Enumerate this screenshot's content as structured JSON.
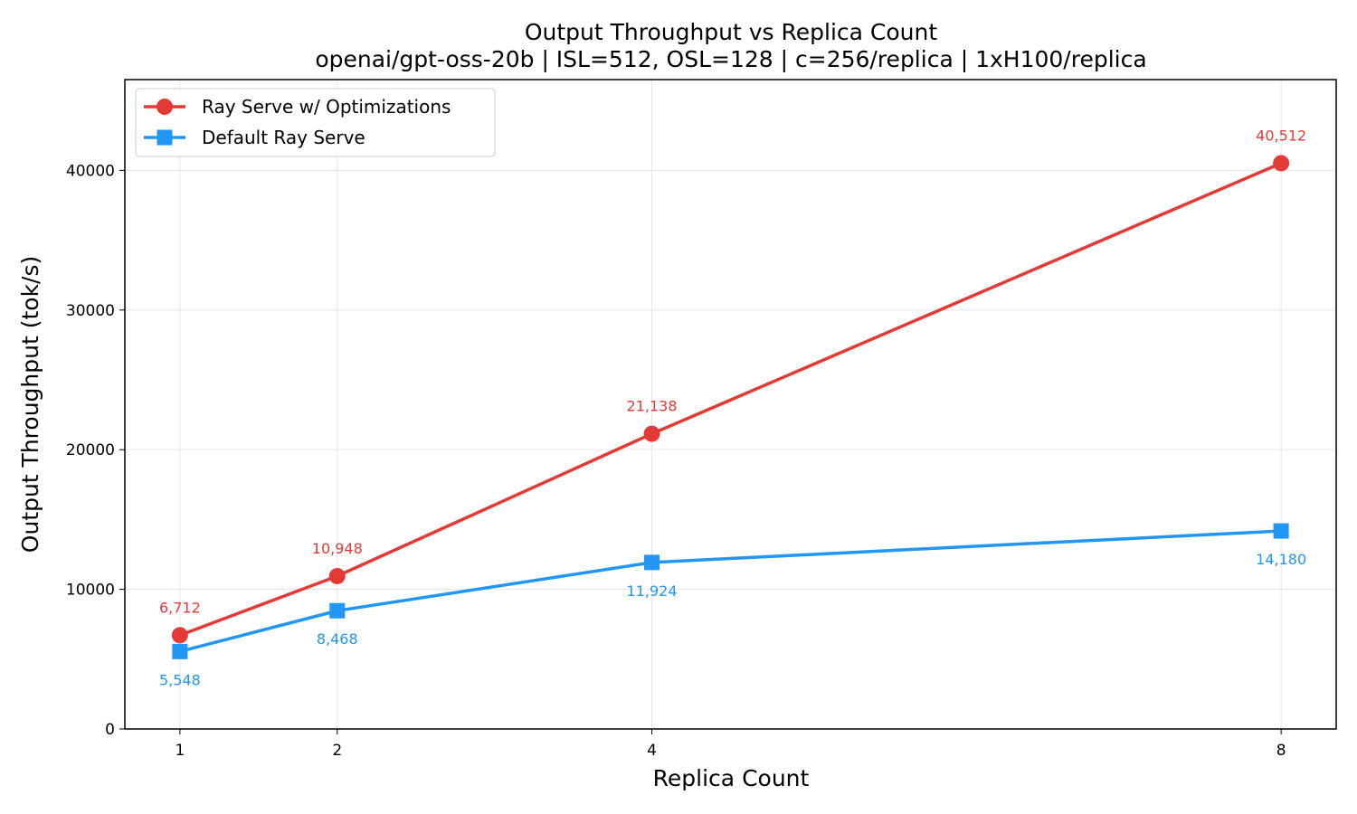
{
  "chart_data": {
    "type": "line",
    "title": "Output Throughput vs Replica Count",
    "subtitle": "openai/gpt-oss-20b | ISL=512, OSL=128 | c=256/replica | 1xH100/replica",
    "xlabel": "Replica Count",
    "ylabel": "Output Throughput (tok/s)",
    "x": [
      1,
      2,
      4,
      8
    ],
    "x_tick_labels": [
      "1",
      "2",
      "4",
      "8"
    ],
    "xlim": [
      0.65,
      8.35
    ],
    "ylim": [
      0,
      46500
    ],
    "y_ticks": [
      0,
      10000,
      20000,
      30000,
      40000
    ],
    "y_tick_labels": [
      "0",
      "10000",
      "20000",
      "30000",
      "40000"
    ],
    "grid": true,
    "legend_position": "top-left",
    "series": [
      {
        "name": "Ray Serve w/ Optimizations",
        "color": "#e53935",
        "marker": "circle",
        "values": [
          6712,
          10948,
          21138,
          40512
        ],
        "labels": [
          "6,712",
          "10,948",
          "21,138",
          "40,512"
        ],
        "label_position": "above"
      },
      {
        "name": "Default Ray Serve",
        "color": "#2196f3",
        "marker": "square",
        "values": [
          5548,
          8468,
          11924,
          14180
        ],
        "labels": [
          "5,548",
          "8,468",
          "11,924",
          "14,180"
        ],
        "label_position": "below"
      }
    ]
  }
}
